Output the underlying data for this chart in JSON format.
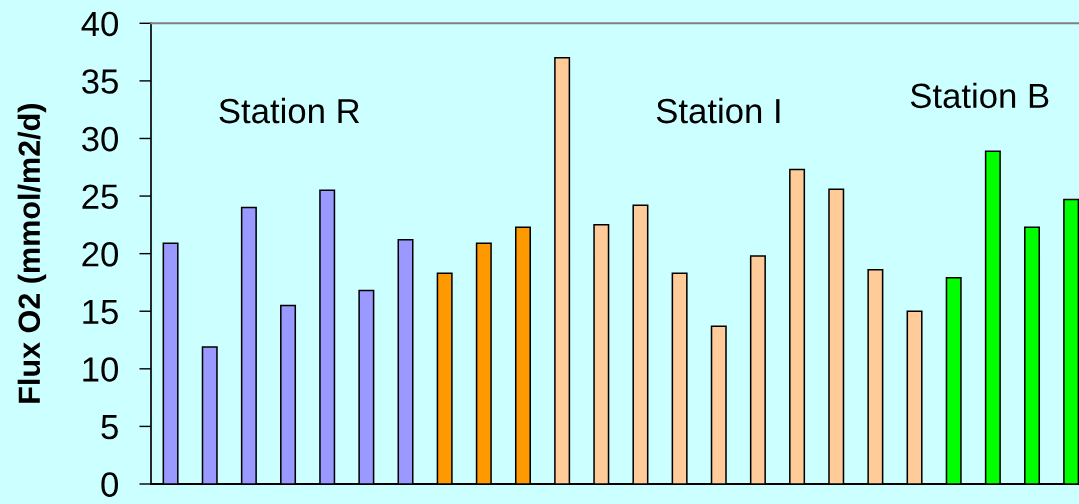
{
  "chart_data": {
    "type": "bar",
    "ylabel": "Flux O2 (mmol/m2/d)",
    "categories": [
      null,
      null,
      null,
      null,
      null,
      null,
      null,
      null,
      null,
      null,
      null,
      null,
      null,
      null,
      null,
      null,
      null,
      null,
      null,
      null,
      null,
      null,
      null,
      null
    ],
    "values": [
      20.9,
      11.9,
      24.0,
      15.5,
      25.5,
      16.8,
      21.2,
      18.3,
      20.9,
      22.3,
      37.0,
      22.5,
      24.2,
      18.3,
      13.7,
      19.8,
      27.3,
      25.6,
      18.6,
      15.0,
      17.9,
      28.9,
      22.3,
      24.7
    ],
    "colors": [
      "#9999ff",
      "#9999ff",
      "#9999ff",
      "#9999ff",
      "#9999ff",
      "#9999ff",
      "#9999ff",
      "#ff9900",
      "#ff9900",
      "#ff9900",
      "#ffcc99",
      "#ffcc99",
      "#ffcc99",
      "#ffcc99",
      "#ffcc99",
      "#ffcc99",
      "#ffcc99",
      "#ffcc99",
      "#ffcc99",
      "#ffcc99",
      "#00ff00",
      "#00ff00",
      "#00ff00",
      "#00ff00"
    ],
    "ylim": [
      0,
      40
    ],
    "yticks": [
      0,
      5,
      10,
      15,
      20,
      25,
      30,
      35,
      40
    ],
    "tick_labels": "y",
    "annotations": [
      "Station R",
      "Station I",
      "Station B"
    ]
  }
}
